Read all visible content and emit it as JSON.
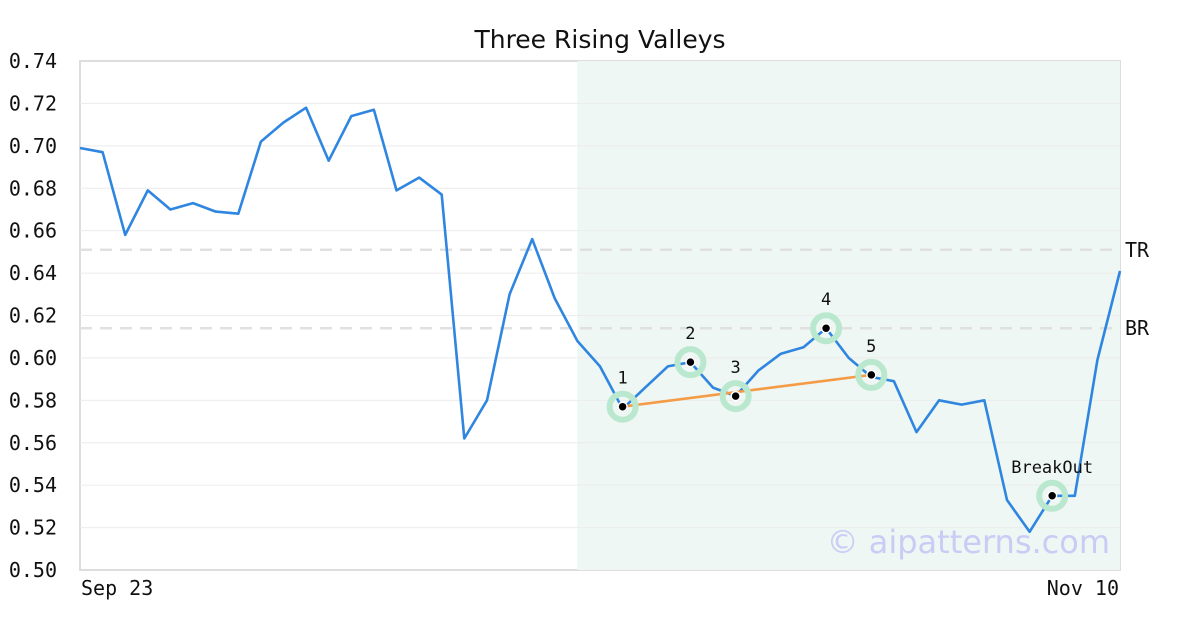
{
  "chart_data": {
    "type": "line",
    "title": "Three Rising Valleys",
    "xlabel": "",
    "ylabel": "",
    "ylim": [
      0.5,
      0.74
    ],
    "y_ticks": [
      "0.50",
      "0.52",
      "0.54",
      "0.56",
      "0.58",
      "0.60",
      "0.62",
      "0.64",
      "0.66",
      "0.68",
      "0.70",
      "0.72",
      "0.74"
    ],
    "x_tick_labels": [
      "Sep 23",
      "Nov 10"
    ],
    "grid": true,
    "series": [
      {
        "color": "#2f86e0",
        "x": [
          0,
          1,
          2,
          3,
          4,
          5,
          6,
          7,
          8,
          9,
          10,
          11,
          12,
          13,
          14,
          15,
          16,
          17,
          18,
          19,
          20,
          21,
          22,
          23,
          24,
          25,
          26,
          27,
          28,
          29,
          30,
          31,
          32,
          33,
          34,
          35,
          36,
          37,
          38,
          39,
          40,
          41,
          42,
          43,
          44,
          45,
          46
        ],
        "values": [
          0.699,
          0.697,
          0.658,
          0.679,
          0.67,
          0.673,
          0.669,
          0.668,
          0.702,
          0.711,
          0.718,
          0.693,
          0.714,
          0.717,
          0.679,
          0.685,
          0.677,
          0.562,
          0.58,
          0.63,
          0.656,
          0.628,
          0.608,
          0.596,
          0.576,
          0.586,
          0.596,
          0.598,
          0.586,
          0.582,
          0.594,
          0.602,
          0.605,
          0.614,
          0.6,
          0.591,
          0.589,
          0.565,
          0.58,
          0.578,
          0.58,
          0.533,
          0.518,
          0.535,
          0.535,
          0.599,
          0.641
        ]
      }
    ],
    "highlight_region": {
      "x_start": 22,
      "x_end": 46,
      "color": "#eef7f3"
    },
    "reference_lines": [
      {
        "label": "TR",
        "y": 0.651,
        "color": "#e0e0e0"
      },
      {
        "label": "BR",
        "y": 0.614,
        "color": "#e0e0e0"
      }
    ],
    "pattern_points": [
      {
        "label": "1",
        "x": 24,
        "y": 0.577
      },
      {
        "label": "2",
        "x": 27,
        "y": 0.598
      },
      {
        "label": "3",
        "x": 29,
        "y": 0.582
      },
      {
        "label": "4",
        "x": 33,
        "y": 0.614
      },
      {
        "label": "5",
        "x": 35,
        "y": 0.592
      },
      {
        "label": "BreakOut",
        "x": 43,
        "y": 0.535
      }
    ],
    "trend_line": {
      "from_point": "1",
      "to_point": "5",
      "color": "#f59a45"
    },
    "marker_halo_color": "#b9e8cf",
    "watermark": "© aipatterns.com"
  }
}
